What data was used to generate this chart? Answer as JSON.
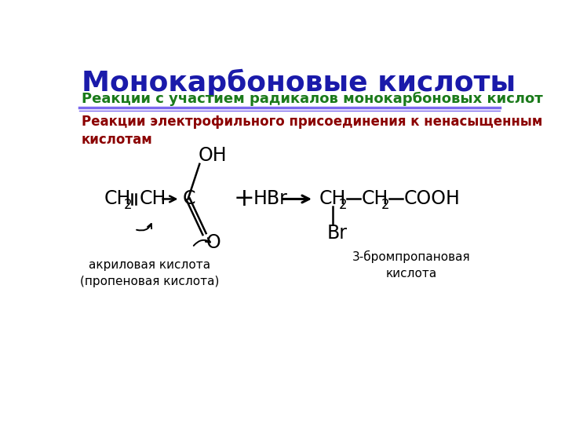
{
  "title": "Монокарбоновые кислоты",
  "subtitle": "Реакции с участием радикалов монокарбоновых кислот",
  "section_title": "Реакции электрофильного присоединения к ненасыщенным\nкислотам",
  "label_acrylic": "акриловая кислота\n(пропеновая кислота)",
  "label_bromoprop": "3-бромпропановая\nкислота",
  "title_color": "#1a1aaa",
  "subtitle_color": "#1a7a1a",
  "section_color": "#8b0000",
  "bg_color": "#ffffff",
  "line_color": "#7b68ee",
  "text_color": "#000000"
}
